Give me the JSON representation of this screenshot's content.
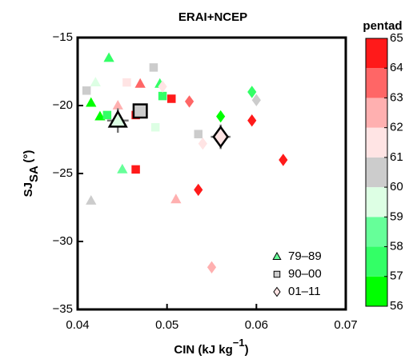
{
  "chart_data": {
    "type": "scatter",
    "title": "ERAI+NCEP",
    "xlabel": [
      "CIN (kJ kg",
      "−1",
      ")"
    ],
    "ylabel": [
      "SJ",
      "SA",
      " (°)"
    ],
    "xlim": [
      0.04,
      0.07
    ],
    "xticks": [
      0.04,
      0.05,
      0.06,
      0.07
    ],
    "ylim": [
      -35,
      -15
    ],
    "yticks": [
      {
        "value": -35,
        "label": "−35"
      },
      {
        "value": -30,
        "label": "−30"
      },
      {
        "value": -25,
        "label": "−25"
      },
      {
        "value": -20,
        "label": "−20"
      },
      {
        "value": -15,
        "label": "−15"
      }
    ],
    "colorbar": {
      "title": "pentad",
      "clim": [
        56,
        65
      ],
      "ticks": [
        56,
        57,
        58,
        59,
        60,
        61,
        62,
        63,
        64,
        65
      ],
      "colors": [
        "#00ff00",
        "#33ff66",
        "#66ff99",
        "#ddffe4",
        "#cccccc",
        "#ffe4e4",
        "#ffb0b0",
        "#ff6666",
        "#ff1a1a"
      ]
    },
    "legend": "lower right",
    "series": [
      {
        "name": "79–89",
        "marker": "triangle",
        "x": [
          0.0435,
          0.042,
          0.047,
          0.0415,
          0.0425,
          0.0492,
          0.045,
          0.0415,
          0.051,
          0.0445
        ],
        "y": [
          -16.5,
          -18.3,
          -18.4,
          -19.8,
          -20.8,
          -18.4,
          -24.7,
          -27.0,
          -26.9,
          -20.0
        ],
        "pentad": [
          57.5,
          59.5,
          63.5,
          56.5,
          56.5,
          57.5,
          58.5,
          60.5,
          62.5,
          62.5
        ],
        "mean": {
          "x": 0.0445,
          "y": -21.1,
          "pentad": 59.5,
          "xerr": 0.0012,
          "yerr": 0.9
        }
      },
      {
        "name": "90–00",
        "marker": "square",
        "x": [
          0.041,
          0.0485,
          0.0455,
          0.0465,
          0.0495,
          0.0505,
          0.0487,
          0.0465,
          0.0535,
          0.0433
        ],
        "y": [
          -18.9,
          -17.2,
          -18.3,
          -20.7,
          -19.3,
          -19.5,
          -21.6,
          -24.7,
          -22.1,
          -20.7
        ],
        "pentad": [
          60.5,
          60.5,
          61.5,
          64.5,
          57.5,
          64.5,
          59.5,
          64.5,
          60.5,
          57.5
        ],
        "mean": {
          "x": 0.047,
          "y": -20.4,
          "pentad": 60.5,
          "xerr": 0.0008,
          "yerr": 0.5
        }
      },
      {
        "name": "01–11",
        "marker": "diamond",
        "x": [
          0.0495,
          0.0525,
          0.054,
          0.056,
          0.0595,
          0.06,
          0.0595,
          0.0535,
          0.063,
          0.055
        ],
        "y": [
          -18.6,
          -19.7,
          -22.8,
          -20.8,
          -19.0,
          -19.6,
          -21.1,
          -26.2,
          -24.0,
          -31.9
        ],
        "pentad": [
          61.5,
          63.5,
          61.5,
          56.5,
          57.5,
          60.5,
          64.5,
          64.5,
          64.5,
          62.5
        ],
        "mean": {
          "x": 0.056,
          "y": -22.3,
          "pentad": 61.5,
          "xerr": 0.0011,
          "yerr": 0.9
        }
      }
    ]
  }
}
